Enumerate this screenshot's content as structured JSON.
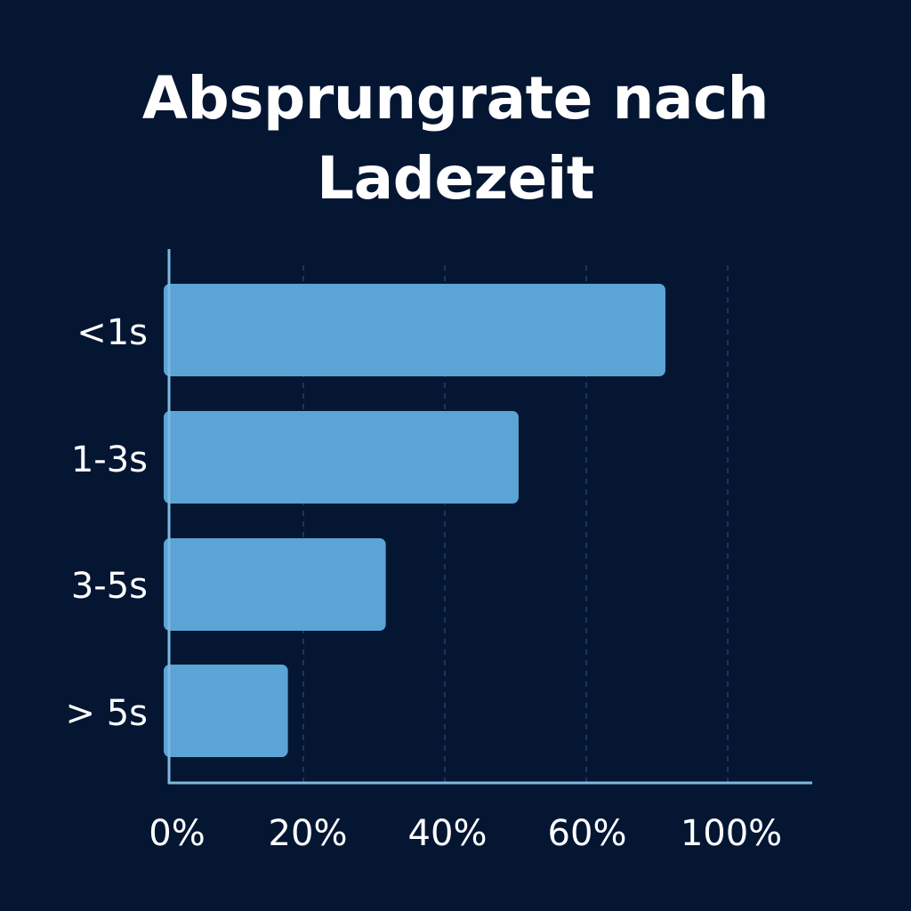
{
  "chart_data": {
    "type": "bar",
    "orientation": "horizontal",
    "title": "Absprungrate nach Ladezeit",
    "title_lines": [
      "Absprungrate nach",
      "Ladezeit"
    ],
    "categories": [
      "<1s",
      "1-3s",
      "3-5s",
      "> 5s"
    ],
    "values": [
      71,
      50,
      31,
      17
    ],
    "x_tick_labels": [
      "0%",
      "20%",
      "40%",
      "60%",
      "100%"
    ],
    "xlim": [
      0,
      92
    ],
    "grid": "vertical dashed",
    "legend": "none",
    "colors": {
      "background": "#051633",
      "bar": "#5aa5d6",
      "axis": "#7fb8e0",
      "grid": "#1c3558",
      "text": "#ffffff"
    }
  }
}
